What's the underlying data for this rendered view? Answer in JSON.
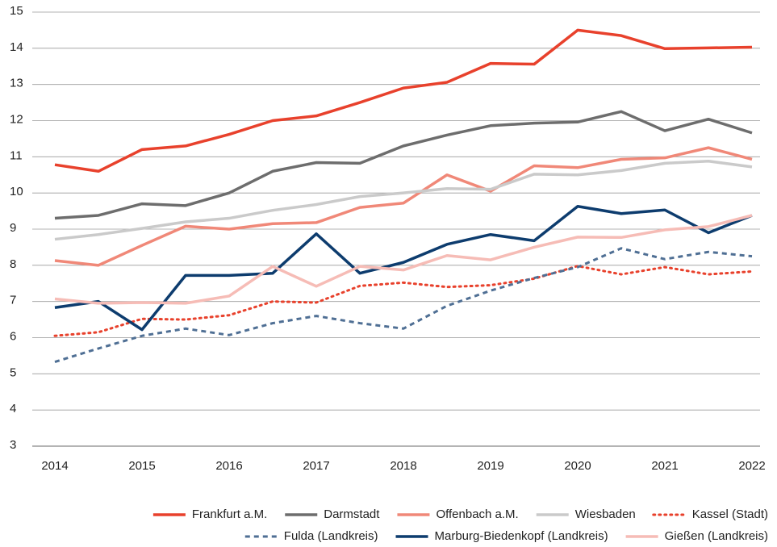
{
  "chart_data": {
    "type": "line",
    "x": [
      2014,
      2014.5,
      2015,
      2015.5,
      2016,
      2016.5,
      2017,
      2017.5,
      2018,
      2018.5,
      2019,
      2019.5,
      2020,
      2020.5,
      2021,
      2021.5,
      2022
    ],
    "xlim": [
      2014,
      2022
    ],
    "xticks": [
      2014,
      2015,
      2016,
      2017,
      2018,
      2019,
      2020,
      2021,
      2022
    ],
    "ylim": [
      3,
      15
    ],
    "yticks": [
      3,
      4,
      5,
      6,
      7,
      8,
      9,
      10,
      11,
      12,
      13,
      14,
      15
    ],
    "grid": true,
    "legend": "bottom",
    "series": [
      {
        "name": "Frankfurt a.M.",
        "color": "#e8412c",
        "style": "solid",
        "values": [
          10.78,
          10.6,
          11.2,
          11.3,
          11.62,
          12.0,
          12.13,
          12.5,
          12.9,
          13.06,
          13.58,
          13.56,
          14.5,
          14.35,
          13.99,
          14.01,
          14.03
        ]
      },
      {
        "name": "Darmstadt",
        "color": "#6d6d6d",
        "style": "solid",
        "values": [
          9.3,
          9.38,
          9.7,
          9.65,
          10.0,
          10.6,
          10.84,
          10.82,
          11.3,
          11.6,
          11.86,
          11.93,
          11.96,
          12.25,
          11.72,
          12.04,
          11.66
        ]
      },
      {
        "name": "Offenbach a.M.",
        "color": "#f08878",
        "style": "solid",
        "values": [
          8.13,
          8.0,
          8.55,
          9.08,
          9.0,
          9.15,
          9.18,
          9.6,
          9.72,
          10.5,
          10.05,
          10.75,
          10.7,
          10.93,
          10.97,
          11.25,
          10.93
        ]
      },
      {
        "name": "Wiesbaden",
        "color": "#cacaca",
        "style": "solid",
        "values": [
          8.72,
          8.85,
          9.02,
          9.2,
          9.3,
          9.52,
          9.68,
          9.9,
          10.0,
          10.12,
          10.1,
          10.52,
          10.5,
          10.62,
          10.82,
          10.88,
          10.72
        ]
      },
      {
        "name": "Kassel (Stadt)",
        "color": "#e8412c",
        "style": "dotted",
        "values": [
          6.05,
          6.15,
          6.52,
          6.5,
          6.62,
          7.0,
          6.97,
          7.43,
          7.52,
          7.4,
          7.45,
          7.63,
          7.98,
          7.75,
          7.95,
          7.75,
          7.83
        ]
      },
      {
        "name": "Fulda (Landkreis)",
        "color": "#4f6f94",
        "style": "dashed",
        "values": [
          5.33,
          5.7,
          6.05,
          6.25,
          6.07,
          6.4,
          6.6,
          6.4,
          6.25,
          6.88,
          7.3,
          7.65,
          7.95,
          8.47,
          8.17,
          8.37,
          8.25
        ]
      },
      {
        "name": "Marburg-Biedenkopf (Landkreis)",
        "color": "#0d3c6e",
        "style": "solid",
        "values": [
          6.83,
          7.0,
          6.22,
          7.72,
          7.72,
          7.78,
          8.87,
          7.78,
          8.08,
          8.58,
          8.85,
          8.68,
          9.63,
          9.43,
          9.53,
          8.9,
          9.38
        ]
      },
      {
        "name": "Gießen (Landkreis)",
        "color": "#f6bcb6",
        "style": "solid",
        "values": [
          7.07,
          6.95,
          6.97,
          6.95,
          7.15,
          7.97,
          7.42,
          7.97,
          7.87,
          8.27,
          8.15,
          8.5,
          8.78,
          8.77,
          8.98,
          9.07,
          9.38
        ]
      }
    ]
  }
}
